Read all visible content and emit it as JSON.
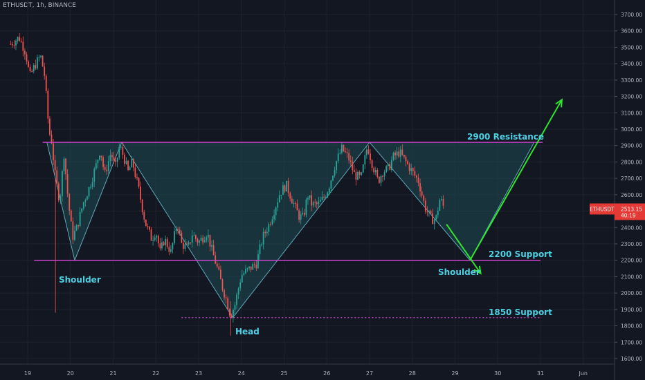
{
  "symbol_header": "ETHUSDT, 1h, BINANCE",
  "price_label": {
    "symbol": "ETHUSDT",
    "price": "2513.15",
    "countdown": "40:19"
  },
  "annotations": {
    "resistance": "2900 Resistance",
    "support_2200": "2200 Support",
    "support_1850": "1850 Support",
    "left_shoulder": "Shoulder",
    "right_shoulder": "Shoulder",
    "head": "Head"
  },
  "colors": {
    "background": "#131722",
    "grid": "#1e222d",
    "up": "#26a69a",
    "down": "#ef5350",
    "pattern_fill": "#1f4a52",
    "pattern_stroke": "#5fa8b8",
    "level_line": "#d042d0",
    "arrow": "#2ee62e",
    "label_text": "#4dd0e1",
    "axis_text": "#b2b5be",
    "price_tag": "#e53935"
  },
  "chart_data": {
    "type": "candlestick",
    "title": "",
    "xlabel": "",
    "ylabel": "",
    "x_ticks": [
      "19",
      "20",
      "21",
      "22",
      "23",
      "24",
      "25",
      "26",
      "27",
      "28",
      "29",
      "30",
      "31",
      "Jun"
    ],
    "y_ticks": [
      "1600.00",
      "1700.00",
      "1800.00",
      "1900.00",
      "2000.00",
      "2100.00",
      "2200.00",
      "2300.00",
      "2400.00",
      "2500.00",
      "2600.00",
      "2700.00",
      "2800.00",
      "2900.00",
      "3000.00",
      "3100.00",
      "3200.00",
      "3300.00",
      "3400.00",
      "3500.00",
      "3600.00",
      "3700.00"
    ],
    "ylim": [
      1540,
      3770
    ],
    "x_range_days": [
      18.6,
      32.3
    ],
    "price_path": [
      {
        "x": 18.6,
        "y": 3520
      },
      {
        "x": 18.8,
        "y": 3560
      },
      {
        "x": 18.95,
        "y": 3470
      },
      {
        "x": 19.05,
        "y": 3320
      },
      {
        "x": 19.15,
        "y": 3380
      },
      {
        "x": 19.3,
        "y": 3450
      },
      {
        "x": 19.4,
        "y": 3320
      },
      {
        "x": 19.5,
        "y": 2980
      },
      {
        "x": 19.55,
        "y": 2950
      },
      {
        "x": 19.65,
        "y": 2700
      },
      {
        "x": 19.75,
        "y": 2560
      },
      {
        "x": 19.85,
        "y": 2850
      },
      {
        "x": 19.95,
        "y": 2560
      },
      {
        "x": 20.05,
        "y": 2340
      },
      {
        "x": 20.15,
        "y": 2400
      },
      {
        "x": 20.3,
        "y": 2550
      },
      {
        "x": 20.45,
        "y": 2650
      },
      {
        "x": 20.6,
        "y": 2780
      },
      {
        "x": 20.7,
        "y": 2880
      },
      {
        "x": 20.8,
        "y": 2720
      },
      {
        "x": 20.95,
        "y": 2860
      },
      {
        "x": 21.05,
        "y": 2760
      },
      {
        "x": 21.15,
        "y": 2900
      },
      {
        "x": 21.25,
        "y": 2830
      },
      {
        "x": 21.35,
        "y": 2740
      },
      {
        "x": 21.45,
        "y": 2800
      },
      {
        "x": 21.6,
        "y": 2630
      },
      {
        "x": 21.75,
        "y": 2430
      },
      {
        "x": 21.9,
        "y": 2330
      },
      {
        "x": 22.0,
        "y": 2380
      },
      {
        "x": 22.1,
        "y": 2250
      },
      {
        "x": 22.2,
        "y": 2330
      },
      {
        "x": 22.35,
        "y": 2250
      },
      {
        "x": 22.5,
        "y": 2430
      },
      {
        "x": 22.6,
        "y": 2300
      },
      {
        "x": 22.75,
        "y": 2270
      },
      {
        "x": 22.85,
        "y": 2360
      },
      {
        "x": 23.0,
        "y": 2310
      },
      {
        "x": 23.2,
        "y": 2370
      },
      {
        "x": 23.3,
        "y": 2270
      },
      {
        "x": 23.45,
        "y": 2140
      },
      {
        "x": 23.55,
        "y": 2040
      },
      {
        "x": 23.65,
        "y": 1960
      },
      {
        "x": 23.75,
        "y": 1860
      },
      {
        "x": 23.85,
        "y": 1930
      },
      {
        "x": 24.0,
        "y": 2110
      },
      {
        "x": 24.2,
        "y": 2150
      },
      {
        "x": 24.35,
        "y": 2180
      },
      {
        "x": 24.5,
        "y": 2340
      },
      {
        "x": 24.65,
        "y": 2420
      },
      {
        "x": 24.8,
        "y": 2530
      },
      {
        "x": 24.9,
        "y": 2610
      },
      {
        "x": 25.05,
        "y": 2660
      },
      {
        "x": 25.2,
        "y": 2560
      },
      {
        "x": 25.35,
        "y": 2470
      },
      {
        "x": 25.45,
        "y": 2460
      },
      {
        "x": 25.55,
        "y": 2600
      },
      {
        "x": 25.65,
        "y": 2540
      },
      {
        "x": 25.8,
        "y": 2540
      },
      {
        "x": 25.95,
        "y": 2590
      },
      {
        "x": 26.05,
        "y": 2650
      },
      {
        "x": 26.2,
        "y": 2790
      },
      {
        "x": 26.35,
        "y": 2880
      },
      {
        "x": 26.5,
        "y": 2830
      },
      {
        "x": 26.65,
        "y": 2720
      },
      {
        "x": 26.8,
        "y": 2700
      },
      {
        "x": 26.95,
        "y": 2900
      },
      {
        "x": 27.05,
        "y": 2800
      },
      {
        "x": 27.2,
        "y": 2680
      },
      {
        "x": 27.3,
        "y": 2740
      },
      {
        "x": 27.45,
        "y": 2760
      },
      {
        "x": 27.55,
        "y": 2830
      },
      {
        "x": 27.7,
        "y": 2860
      },
      {
        "x": 27.85,
        "y": 2800
      },
      {
        "x": 28.0,
        "y": 2740
      },
      {
        "x": 28.15,
        "y": 2680
      },
      {
        "x": 28.3,
        "y": 2520
      },
      {
        "x": 28.45,
        "y": 2450
      },
      {
        "x": 28.55,
        "y": 2450
      },
      {
        "x": 28.65,
        "y": 2580
      },
      {
        "x": 28.75,
        "y": 2513
      }
    ],
    "levels": [
      {
        "name": "2900 Resistance",
        "y": 2920
      },
      {
        "name": "2200 Support",
        "y": 2200
      },
      {
        "name": "1850 Support",
        "y": 1850
      }
    ],
    "pattern": "inverse head and shoulders",
    "last_price": 2513.15
  }
}
